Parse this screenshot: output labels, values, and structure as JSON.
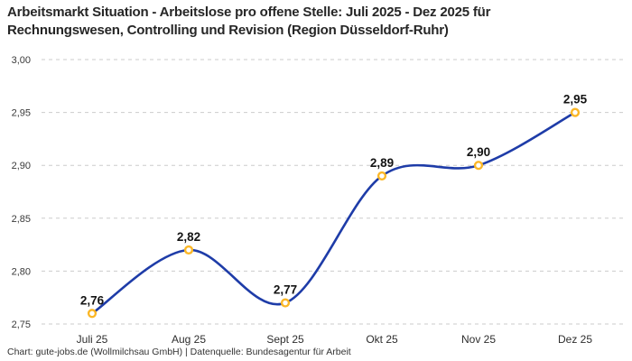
{
  "header": {
    "title_lines": [
      "Arbeitsmarkt Situation - Arbeitslose pro offene Stelle: Juli 2025 - Dez 2025 für",
      "Rechnungswesen, Controlling und Revision (Region Düsseldorf-Ruhr)"
    ]
  },
  "footer": {
    "credit": "Chart: gute-jobs.de (Wollmilchsau GmbH) | Datenquelle: Bundesagentur für Arbeit"
  },
  "chart_data": {
    "type": "line",
    "title": "Arbeitsmarkt Situation - Arbeitslose pro offene Stelle: Juli 2025 - Dez 2025 für Rechnungswesen, Controlling und Revision (Region Düsseldorf-Ruhr)",
    "categories": [
      "Juli 25",
      "Aug 25",
      "Sept 25",
      "Okt 25",
      "Nov 25",
      "Dez 25"
    ],
    "values": [
      2.76,
      2.82,
      2.77,
      2.89,
      2.9,
      2.95
    ],
    "value_labels": [
      "2,76",
      "2,82",
      "2,77",
      "2,89",
      "2,90",
      "2,95"
    ],
    "xlabel": "",
    "ylabel": "",
    "ylim": [
      2.75,
      3.0
    ],
    "yticks": [
      2.75,
      2.8,
      2.85,
      2.9,
      2.95,
      3.0
    ],
    "ytick_labels": [
      "2,75",
      "2,80",
      "2,85",
      "2,90",
      "2,95",
      "3,00"
    ],
    "grid": "horizontal-dashed",
    "legend": "none",
    "line_smooth": true,
    "colors": {
      "line": "#1E3CA8",
      "marker_stroke": "#FBB726",
      "marker_fill": "#FFFFFF",
      "grid": "#CBCBCB",
      "background": "#FFFFFF"
    }
  }
}
